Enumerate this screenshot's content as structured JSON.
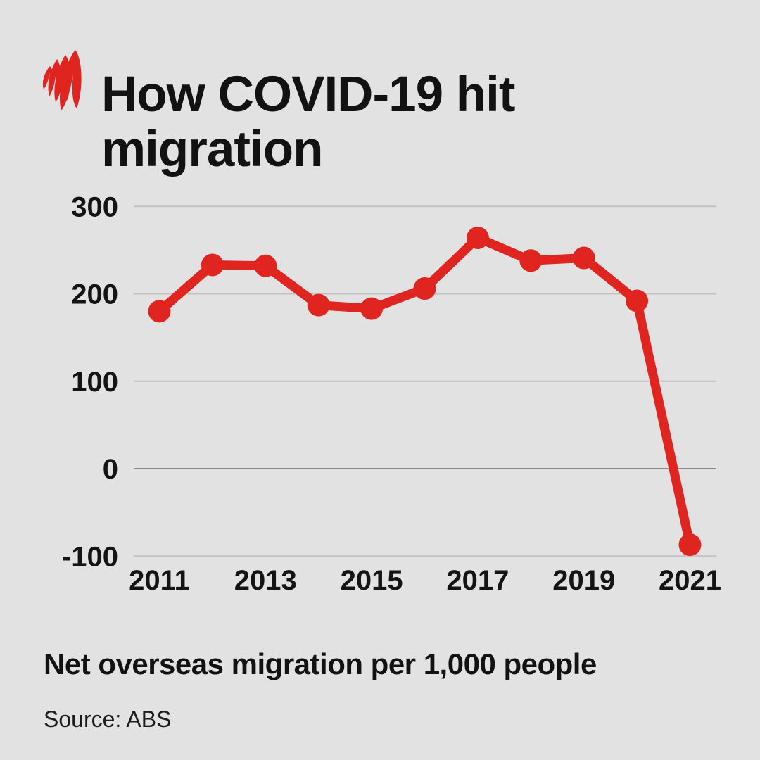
{
  "colors": {
    "background": "#e2e2e2",
    "accent_red": "#e02420",
    "grid": "#c3c3c3",
    "axis_zero": "#8c8c8c",
    "text": "#141414"
  },
  "header": {
    "logo_icon": "sbs-mercury-flame-logo"
  },
  "chart_data": {
    "type": "line",
    "title": "How COVID-19 hit migration",
    "subtitle": "Net overseas migration per 1,000 people",
    "source": "Source: ABS",
    "x": [
      2011,
      2012,
      2013,
      2014,
      2015,
      2016,
      2017,
      2018,
      2019,
      2020,
      2021
    ],
    "series": [
      {
        "name": "Net overseas migration per 1,000 people",
        "values": [
          180,
          233,
          232,
          187,
          183,
          206,
          264,
          238,
          241,
          192,
          -87
        ]
      }
    ],
    "y_ticks": [
      300,
      200,
      100,
      0,
      -100
    ],
    "y_tick_labels": [
      "300",
      "200",
      "100",
      "0",
      "-100"
    ],
    "x_tick_labels": [
      "2011",
      "2013",
      "2015",
      "2017",
      "2019",
      "2021"
    ],
    "ylim": [
      -135,
      320
    ],
    "xlabel": "",
    "ylabel": "",
    "grid": "horizontal-only",
    "legend": "none",
    "line_color": "#e02420",
    "marker": "circle"
  }
}
